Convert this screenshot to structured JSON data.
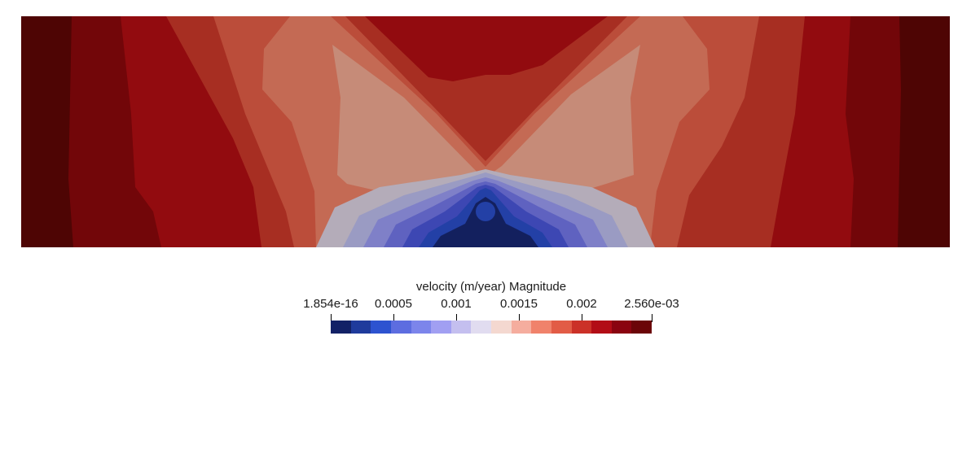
{
  "field": {
    "background_color": "#ffffff",
    "band_colors": [
      "#4e0504",
      "#720609",
      "#920b0f",
      "#a72e22",
      "#bb4d3a",
      "#c46a54",
      "#c68b78",
      "#b4acb9",
      "#9a9bc3",
      "#7f80c8",
      "#5f62c0",
      "#3d47b3",
      "#2340a6",
      "#13205e"
    ]
  },
  "colorbar": {
    "title": "velocity (m/year) Magnitude",
    "tick_labels": [
      "1.854e-16",
      "0.0005",
      "0.001",
      "0.0015",
      "0.002",
      "2.560e-03"
    ],
    "tick_values": [
      1.854e-16,
      0.0005,
      0.001,
      0.0015,
      0.002,
      0.00256
    ],
    "range": [
      1.854e-16,
      0.00256
    ],
    "swatch_colors": [
      "#122166",
      "#1f3b9c",
      "#2d53d0",
      "#5d6de0",
      "#7c85eb",
      "#a19ff2",
      "#c4bfef",
      "#e1dcf0",
      "#f4d8d0",
      "#f5ad9e",
      "#f0826b",
      "#e25c46",
      "#cb3128",
      "#b20d16",
      "#8a0410",
      "#6b0508"
    ]
  }
}
